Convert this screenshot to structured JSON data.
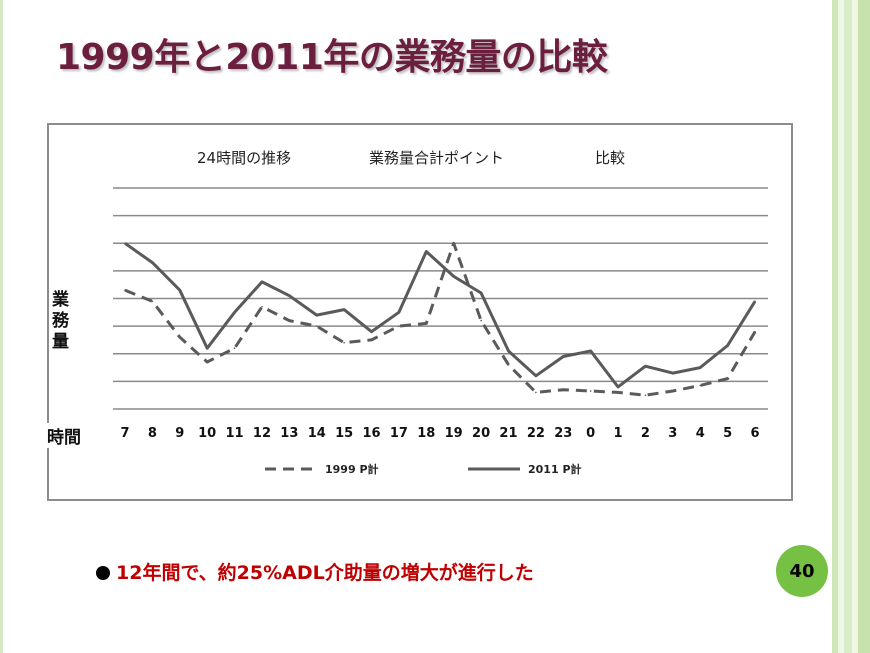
{
  "slide": {
    "title": "1999年と2011年の業務量の比較",
    "bullet_text": "12年間で、約25%ADL介助量の増大が進行した",
    "page_number": "40"
  },
  "chart_data": {
    "type": "line",
    "title_parts": [
      "24時間の推移",
      "業務量合計ポイント",
      "比較"
    ],
    "ylabel": "業\n務\n量",
    "xlabel": "時間",
    "categories": [
      "7",
      "8",
      "9",
      "10",
      "11",
      "12",
      "13",
      "14",
      "15",
      "16",
      "17",
      "18",
      "19",
      "20",
      "21",
      "22",
      "23",
      "0",
      "1",
      "2",
      "3",
      "4",
      "5",
      "6"
    ],
    "ylim": [
      0,
      8
    ],
    "grid": "horizontal",
    "legend_position": "bottom",
    "series": [
      {
        "name": "1999 P計",
        "style": "dashed",
        "color": "#5a5a5a",
        "values": [
          4.3,
          3.9,
          2.6,
          1.7,
          2.2,
          3.7,
          3.2,
          3.0,
          2.4,
          2.5,
          3.0,
          3.1,
          6.0,
          3.2,
          1.6,
          0.6,
          0.7,
          0.65,
          0.6,
          0.5,
          0.65,
          0.85,
          1.1,
          2.8
        ]
      },
      {
        "name": "2011 P計",
        "style": "solid",
        "color": "#5a5a5a",
        "values": [
          6.0,
          5.3,
          4.3,
          2.2,
          3.5,
          4.6,
          4.1,
          3.4,
          3.6,
          2.8,
          3.5,
          5.7,
          4.8,
          4.2,
          2.1,
          1.2,
          1.9,
          2.1,
          0.8,
          1.55,
          1.3,
          1.5,
          2.3,
          3.9
        ]
      }
    ]
  }
}
